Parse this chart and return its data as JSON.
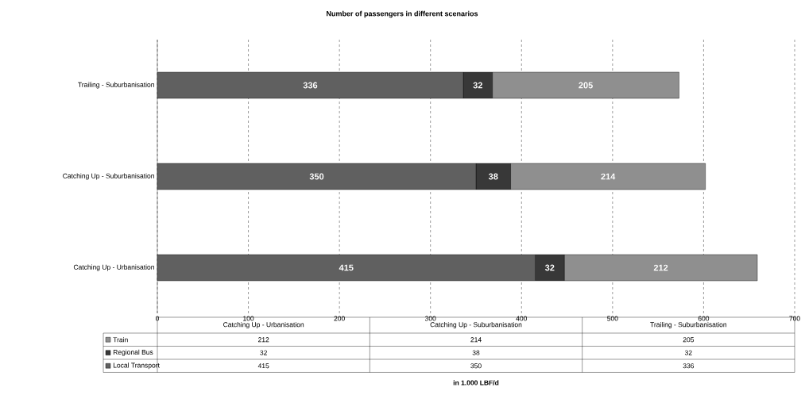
{
  "chart_data": {
    "type": "bar",
    "orientation": "horizontal",
    "stacked": true,
    "title": "Number of passengers in different scenarios",
    "annotations": [
      "in 1.000 LBF/d",
      "212",
      "214",
      "205",
      "32",
      "38",
      "32",
      "415",
      "350",
      "336"
    ],
    "categories": [
      "Trailing - Suburbanisation",
      "Catching Up - Suburbanisation",
      "Catching Up - Urbanisation"
    ],
    "series": [
      {
        "name": "Local Transport",
        "color": "#606060",
        "values": [
          336,
          350,
          415
        ]
      },
      {
        "name": "Regional Bus",
        "color": "#383838",
        "values": [
          32,
          38,
          32
        ]
      },
      {
        "name": "Train",
        "color": "#8f8f8f",
        "values": [
          205,
          214,
          212
        ]
      }
    ],
    "xlim": [
      0,
      700
    ],
    "xticks": [
      0,
      100,
      200,
      300,
      400,
      500,
      600,
      700
    ],
    "grid": "x",
    "legend": "bottom",
    "data_labels": true
  }
}
